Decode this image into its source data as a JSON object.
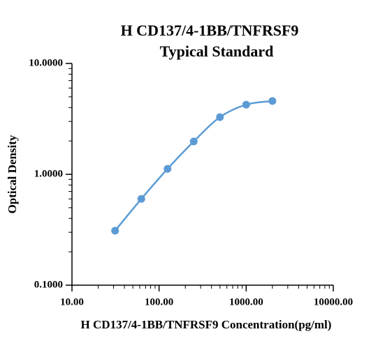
{
  "chart_data": {
    "type": "scatter",
    "title": "H CD137/4-1BB/TNFRSF9",
    "subtitle": "Typical Standard",
    "x_label": "H CD137/4-1BB/TNFRSF9 Concentration(pg/ml)",
    "y_label": "Optical Density",
    "x_log": true,
    "y_log": true,
    "xlim": [
      10,
      10000
    ],
    "ylim": [
      0.1,
      10
    ],
    "xticks": [
      {
        "value": 10,
        "label": "10.00"
      },
      {
        "value": 100,
        "label": "100.00"
      },
      {
        "value": 1000,
        "label": "1000.00"
      },
      {
        "value": 10000,
        "label": "10000.00"
      }
    ],
    "yticks": [
      {
        "value": 0.1,
        "label": "0.1000"
      },
      {
        "value": 1,
        "label": "1.0000"
      },
      {
        "value": 10,
        "label": "10.0000"
      }
    ],
    "series": [
      {
        "color": "#5b9bd5",
        "x": [
          31.25,
          62.5,
          125,
          250,
          500,
          1000,
          2000
        ],
        "values": [
          0.31,
          0.6,
          1.12,
          1.98,
          3.28,
          4.25,
          4.58
        ]
      }
    ]
  }
}
